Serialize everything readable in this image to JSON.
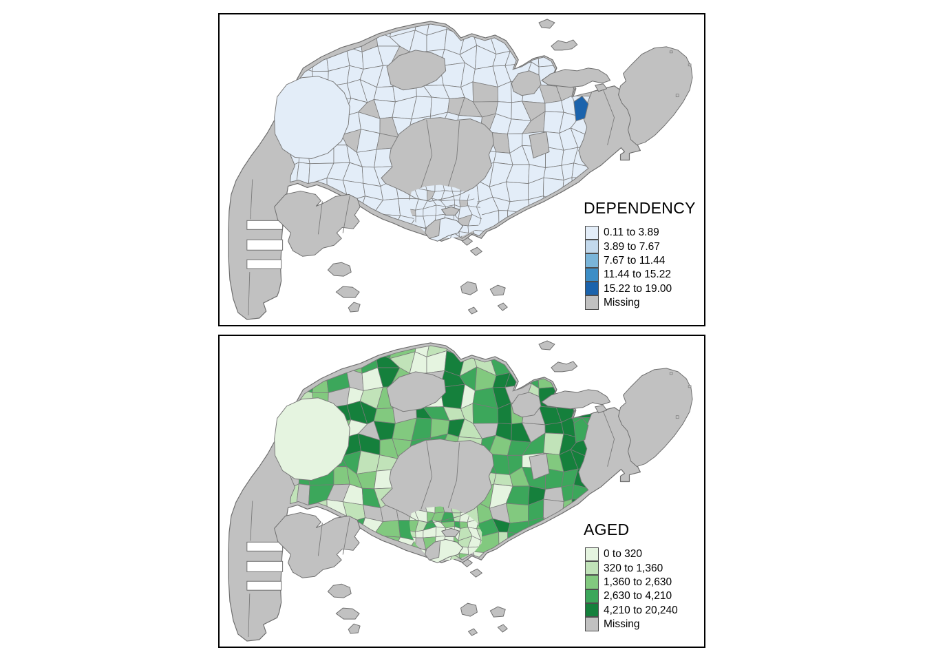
{
  "figure": {
    "description": "Two small-multiple choropleth maps of Singapore planning subzones",
    "background": "#ffffff",
    "panel_border": "#000000"
  },
  "panels": [
    {
      "id": "dependency",
      "title": "DEPENDENCY",
      "legend": {
        "classes": [
          {
            "label": "0.11 to 3.89",
            "color": "#e3edf8"
          },
          {
            "label": "3.89 to 7.67",
            "color": "#c3d9ec"
          },
          {
            "label": "7.67 to 11.44",
            "color": "#7ab5d9"
          },
          {
            "label": "11.44 to 15.22",
            "color": "#3d8ec6"
          },
          {
            "label": "15.22 to 19.00",
            "color": "#1b63ac"
          }
        ],
        "missing": {
          "label": "Missing",
          "color": "#c1c1c1"
        }
      },
      "notes": "Nearly all subzones fall in lowest class; one northeast subzone in highest class"
    },
    {
      "id": "aged",
      "title": "AGED",
      "legend": {
        "classes": [
          {
            "label": "0 to 320",
            "color": "#e5f4e0"
          },
          {
            "label": "320 to 1,360",
            "color": "#c1e3b9"
          },
          {
            "label": "1,360 to 2,630",
            "color": "#82c97f"
          },
          {
            "label": "2,630 to 4,210",
            "color": "#3ca75b"
          },
          {
            "label": "4,210 to 20,240",
            "color": "#15803c"
          }
        ],
        "missing": {
          "label": "Missing",
          "color": "#c1c1c1"
        }
      },
      "notes": "Mixed classes; darkest clusters in northeast, east and far west; palest in city core and offshore"
    }
  ],
  "map_style": {
    "sea_color": "#ffffff",
    "subzone_border_color": "#7a7a7a",
    "coast_border_color": "#6e6e6e",
    "missing_fill": "#c1c1c1"
  },
  "chart_data": {
    "type": "choropleth-map-pair",
    "region": "Singapore subzones",
    "maps": [
      {
        "variable": "DEPENDENCY",
        "breaks": [
          0.11,
          3.89,
          7.67,
          11.44,
          15.22,
          19.0
        ],
        "palette": "blues",
        "missing_label": "Missing"
      },
      {
        "variable": "AGED",
        "breaks": [
          0,
          320,
          1360,
          2630,
          4210,
          20240
        ],
        "palette": "greens",
        "missing_label": "Missing"
      }
    ]
  }
}
